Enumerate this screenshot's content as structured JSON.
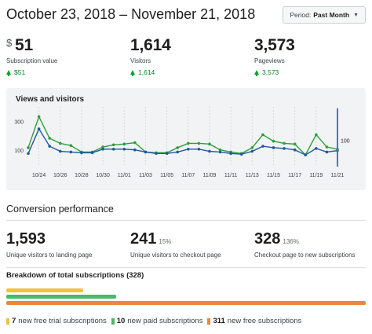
{
  "header": {
    "date_range": "October 23, 2018 – November 21, 2018",
    "period_label": "Period:",
    "period_value": "Past Month"
  },
  "stats": [
    {
      "currency": "$",
      "value": "51",
      "label": "Subscription value",
      "delta": "$51"
    },
    {
      "currency": "",
      "value": "1,614",
      "label": "Visitors",
      "delta": "1,614"
    },
    {
      "currency": "",
      "value": "3,573",
      "label": "Pageviews",
      "delta": "3,573"
    }
  ],
  "chart": {
    "title": "Views and visitors",
    "y_ticks": [
      "300",
      "100"
    ],
    "callout_value": "100",
    "colors": {
      "views": "#2e9e3e",
      "visitors": "#1f5a9e",
      "grid": "#d6d8db",
      "marker": "#3a7bd5"
    }
  },
  "chart_data": {
    "type": "line",
    "x": [
      "10/23",
      "10/24",
      "10/25",
      "10/26",
      "10/27",
      "10/28",
      "10/29",
      "10/30",
      "10/31",
      "11/01",
      "11/02",
      "11/03",
      "11/04",
      "11/05",
      "11/06",
      "11/07",
      "11/08",
      "11/09",
      "11/10",
      "11/11",
      "11/12",
      "11/13",
      "11/14",
      "11/15",
      "11/16",
      "11/17",
      "11/18",
      "11/19",
      "11/20",
      "11/21"
    ],
    "tick_labels": [
      "10/24",
      "10/26",
      "10/28",
      "10/30",
      "11/01",
      "11/03",
      "11/05",
      "11/07",
      "11/09",
      "11/11",
      "11/13",
      "11/15",
      "11/17",
      "11/19",
      "11/21"
    ],
    "ylim": [
      0,
      370
    ],
    "series": [
      {
        "key": "views",
        "values": [
          120,
          335,
          185,
          150,
          135,
          90,
          90,
          125,
          140,
          145,
          155,
          90,
          85,
          85,
          120,
          150,
          150,
          145,
          105,
          90,
          80,
          120,
          210,
          165,
          150,
          145,
          70,
          210,
          125,
          110
        ]
      },
      {
        "key": "visitors",
        "values": [
          80,
          250,
          130,
          95,
          90,
          85,
          85,
          110,
          110,
          110,
          105,
          90,
          80,
          80,
          90,
          110,
          110,
          95,
          90,
          80,
          75,
          95,
          130,
          120,
          115,
          105,
          70,
          115,
          90,
          100
        ]
      }
    ]
  },
  "conversion": {
    "title": "Conversion performance",
    "metrics": [
      {
        "value": "1,593",
        "pct": "",
        "label": "Unique visitors to landing page"
      },
      {
        "value": "241",
        "pct": "15%",
        "label": "Unique visitors to checkout page"
      },
      {
        "value": "328",
        "pct": "136%",
        "label": "Checkout page to new subscriptions"
      }
    ]
  },
  "breakdown": {
    "title": "Breakdown of total subscriptions (328)",
    "total": 328,
    "items": [
      {
        "count": 7,
        "count_label": "7",
        "label": "new free trial subscriptions",
        "color": "#f0c33c"
      },
      {
        "count": 10,
        "count_label": "10",
        "label": "new paid subscriptions",
        "color": "#4ab866"
      },
      {
        "count": 311,
        "count_label": "311",
        "label": "new free subscriptions",
        "color": "#f0843c"
      }
    ]
  }
}
